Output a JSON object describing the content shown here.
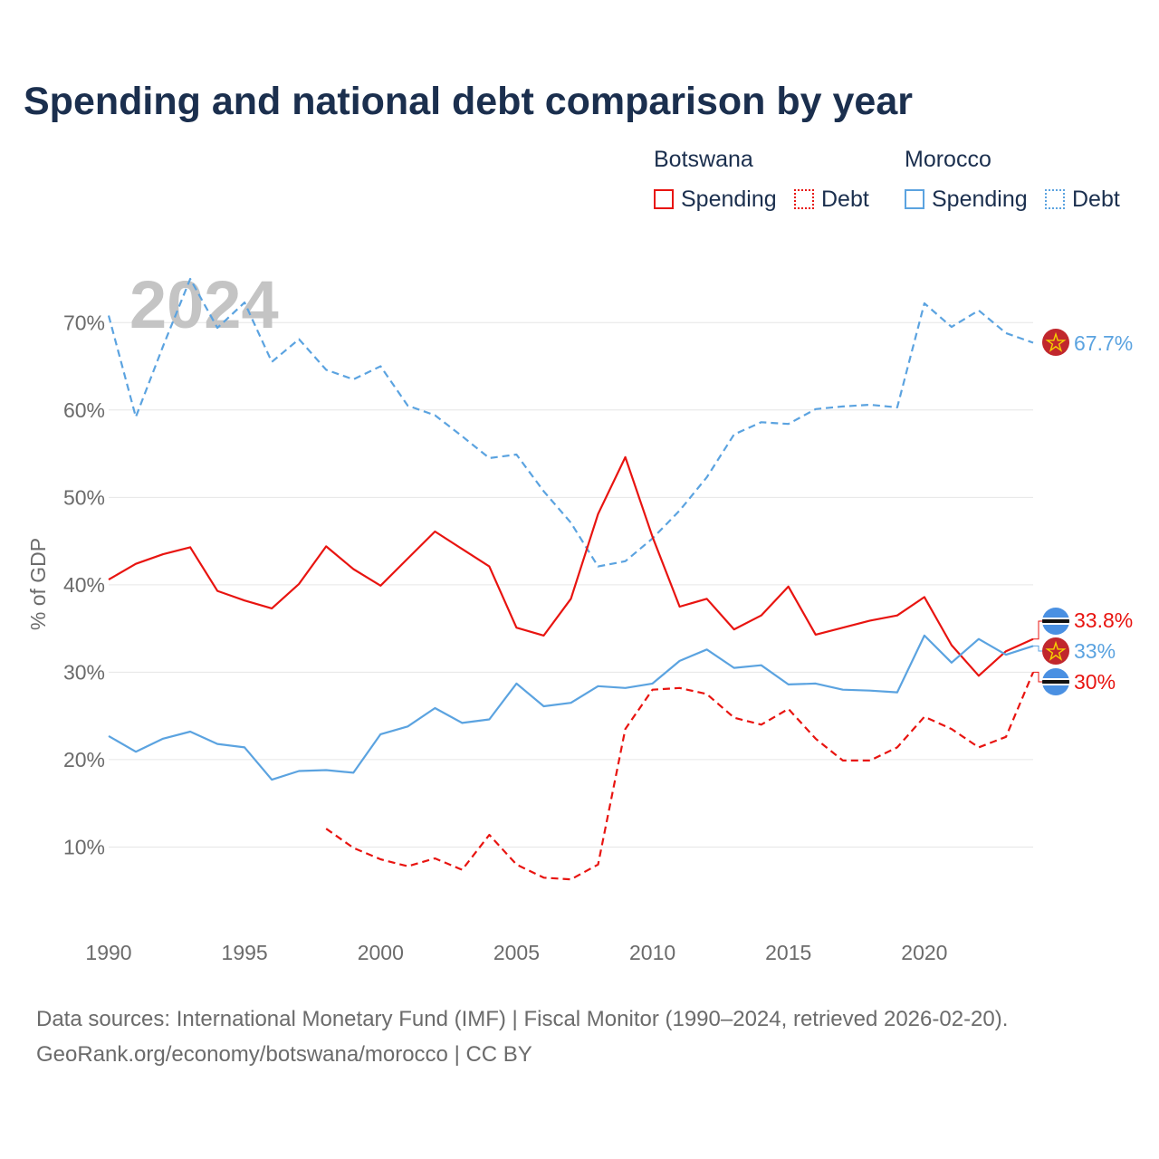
{
  "title": "Spending and national debt comparison by year",
  "legend": {
    "groups": [
      {
        "country": "Botswana",
        "items": [
          {
            "label": "Spending",
            "style": "solid"
          },
          {
            "label": "Debt",
            "style": "dotted"
          }
        ],
        "color": "#e81410"
      },
      {
        "country": "Morocco",
        "items": [
          {
            "label": "Spending",
            "style": "solid"
          },
          {
            "label": "Debt",
            "style": "dotted"
          }
        ],
        "color": "#5ba3e0"
      }
    ]
  },
  "year_watermark": "2024",
  "source": {
    "line1": "Data sources: International Monetary Fund (IMF) | Fiscal Monitor (1990–2024, retrieved 2026-02-20).",
    "line2": "GeoRank.org/economy/botswana/morocco | CC BY"
  },
  "chart_data": {
    "type": "line",
    "title": "Spending and national debt comparison by year",
    "xlabel": "",
    "ylabel": "% of GDP",
    "xlim": [
      1990,
      2024
    ],
    "ylim": [
      0,
      75
    ],
    "grid": true,
    "legend_position": "top-right",
    "x_ticks": [
      1990,
      1995,
      2000,
      2005,
      2010,
      2015,
      2020
    ],
    "x_tick_labels": [
      "1990",
      "1995",
      "2000",
      "2005",
      "2010",
      "2015",
      "2020"
    ],
    "y_ticks": [
      10,
      20,
      30,
      40,
      50,
      60,
      70
    ],
    "y_tick_labels": [
      "10%",
      "20%",
      "30%",
      "40%",
      "50%",
      "60%",
      "70%"
    ],
    "series": [
      {
        "name": "Morocco Debt",
        "country": "Morocco",
        "metric": "Debt",
        "color": "#5ba3e0",
        "dash": "dashed",
        "end_label": "67.7%",
        "x": [
          1990,
          1991,
          1992,
          1993,
          1994,
          1995,
          1996,
          1997,
          1998,
          1999,
          2000,
          2001,
          2002,
          2003,
          2004,
          2005,
          2006,
          2007,
          2008,
          2009,
          2010,
          2011,
          2012,
          2013,
          2014,
          2015,
          2016,
          2017,
          2018,
          2019,
          2020,
          2021,
          2022,
          2023,
          2024
        ],
        "values": [
          70.8,
          59.2,
          67.3,
          75.0,
          69.4,
          72.3,
          65.5,
          68.1,
          64.6,
          63.5,
          65.0,
          60.5,
          59.4,
          57.0,
          54.5,
          54.9,
          50.7,
          47.1,
          42.1,
          42.7,
          45.3,
          48.5,
          52.3,
          57.2,
          58.6,
          58.4,
          60.1,
          60.4,
          60.6,
          60.3,
          72.2,
          69.5,
          71.4,
          68.8,
          67.7
        ]
      },
      {
        "name": "Botswana Spending",
        "country": "Botswana",
        "metric": "Spending",
        "color": "#e81410",
        "dash": "solid",
        "end_label": "33.8%",
        "x": [
          1990,
          1991,
          1992,
          1993,
          1994,
          1995,
          1996,
          1997,
          1998,
          1999,
          2000,
          2001,
          2002,
          2003,
          2004,
          2005,
          2006,
          2007,
          2008,
          2009,
          2010,
          2011,
          2012,
          2013,
          2014,
          2015,
          2016,
          2017,
          2018,
          2019,
          2020,
          2021,
          2022,
          2023,
          2024
        ],
        "values": [
          40.6,
          42.4,
          43.5,
          44.3,
          39.3,
          38.2,
          37.3,
          40.1,
          44.4,
          41.8,
          39.9,
          43.0,
          46.1,
          44.1,
          42.1,
          35.1,
          34.2,
          38.4,
          48.1,
          54.6,
          45.5,
          37.5,
          38.4,
          34.9,
          36.5,
          39.8,
          34.3,
          35.1,
          35.9,
          36.5,
          38.6,
          33.1,
          29.6,
          32.4,
          33.8
        ]
      },
      {
        "name": "Morocco Spending",
        "country": "Morocco",
        "metric": "Spending",
        "color": "#5ba3e0",
        "dash": "solid",
        "end_label": "33%",
        "x": [
          1990,
          1991,
          1992,
          1993,
          1994,
          1995,
          1996,
          1997,
          1998,
          1999,
          2000,
          2001,
          2002,
          2003,
          2004,
          2005,
          2006,
          2007,
          2008,
          2009,
          2010,
          2011,
          2012,
          2013,
          2014,
          2015,
          2016,
          2017,
          2018,
          2019,
          2020,
          2021,
          2022,
          2023,
          2024
        ],
        "values": [
          22.7,
          20.9,
          22.4,
          23.2,
          21.8,
          21.4,
          17.7,
          18.7,
          18.8,
          18.5,
          22.9,
          23.8,
          25.9,
          24.2,
          24.6,
          28.7,
          26.1,
          26.5,
          28.4,
          28.2,
          28.7,
          31.3,
          32.6,
          30.5,
          30.8,
          28.6,
          28.7,
          28.0,
          27.9,
          27.7,
          34.2,
          31.1,
          33.8,
          32.0,
          33.0
        ]
      },
      {
        "name": "Botswana Debt",
        "country": "Botswana",
        "metric": "Debt",
        "color": "#e81410",
        "dash": "dashed",
        "end_label": "30%",
        "x": [
          1998,
          1999,
          2000,
          2001,
          2002,
          2003,
          2004,
          2005,
          2006,
          2007,
          2008,
          2009,
          2010,
          2011,
          2012,
          2013,
          2014,
          2015,
          2016,
          2017,
          2018,
          2019,
          2020,
          2021,
          2022,
          2023,
          2024
        ],
        "values": [
          12.1,
          9.9,
          8.6,
          7.8,
          8.7,
          7.4,
          11.4,
          8.0,
          6.5,
          6.3,
          8.0,
          23.5,
          28.0,
          28.2,
          27.5,
          24.8,
          24.0,
          25.8,
          22.4,
          19.9,
          19.9,
          21.4,
          24.9,
          23.5,
          21.4,
          22.6,
          30.0
        ]
      }
    ]
  }
}
